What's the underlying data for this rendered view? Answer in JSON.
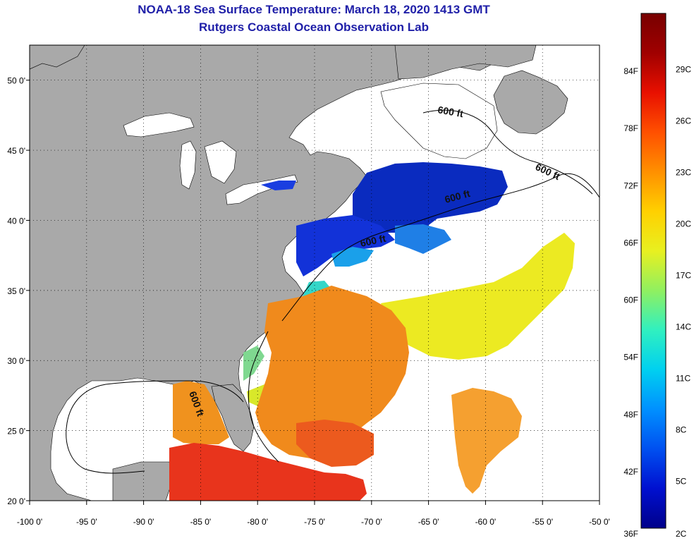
{
  "title": {
    "line1": "NOAA-18 Sea Surface Temperature:  March 18, 2020 1413 GMT",
    "line2": "Rutgers Coastal Ocean Observation Lab"
  },
  "map": {
    "lon_range": [
      -100,
      -50
    ],
    "lat_range": [
      20,
      52.5
    ],
    "lon_ticks": [
      {
        "value": -100,
        "label": "-100 0'"
      },
      {
        "value": -95,
        "label": "-95 0'"
      },
      {
        "value": -90,
        "label": "-90 0'"
      },
      {
        "value": -85,
        "label": "-85 0'"
      },
      {
        "value": -80,
        "label": "-80 0'"
      },
      {
        "value": -75,
        "label": "-75 0'"
      },
      {
        "value": -70,
        "label": "-70 0'"
      },
      {
        "value": -65,
        "label": "-65 0'"
      },
      {
        "value": -60,
        "label": "-60 0'"
      },
      {
        "value": -55,
        "label": "-55 0'"
      },
      {
        "value": -50,
        "label": "-50 0'"
      }
    ],
    "lat_ticks": [
      {
        "value": 50,
        "label": "50 0'"
      },
      {
        "value": 45,
        "label": "45 0'"
      },
      {
        "value": 40,
        "label": "40 0'"
      },
      {
        "value": 35,
        "label": "35 0'"
      },
      {
        "value": 30,
        "label": "30 0'"
      },
      {
        "value": 25,
        "label": "25 0'"
      },
      {
        "value": 20,
        "label": "20 0'"
      }
    ],
    "contour_label": "600 ft",
    "colors": {
      "land": "#a9a9a9",
      "no_data": "#ffffff",
      "cold": "#0a2bbf",
      "cool": "#1f7fe6",
      "mid": "#34d6c8",
      "warm": "#ecea22",
      "hot": "#f08a1c",
      "hottest": "#e8341c"
    }
  },
  "colorbar": {
    "min_f": 36,
    "max_f": 90,
    "fahrenheit_labels": [
      "36F",
      "42F",
      "48F",
      "54F",
      "60F",
      "66F",
      "72F",
      "78F",
      "84F"
    ],
    "celsius_labels": [
      "2C",
      "5C",
      "8C",
      "11C",
      "14C",
      "17C",
      "20C",
      "23C",
      "26C",
      "29C"
    ],
    "gradient": [
      "#00008a",
      "#0010d0",
      "#0050f0",
      "#0090ff",
      "#00d0f0",
      "#30f0c0",
      "#90f060",
      "#e8f020",
      "#ffd000",
      "#ff9000",
      "#ff5000",
      "#e81000",
      "#a00000",
      "#780000"
    ]
  }
}
